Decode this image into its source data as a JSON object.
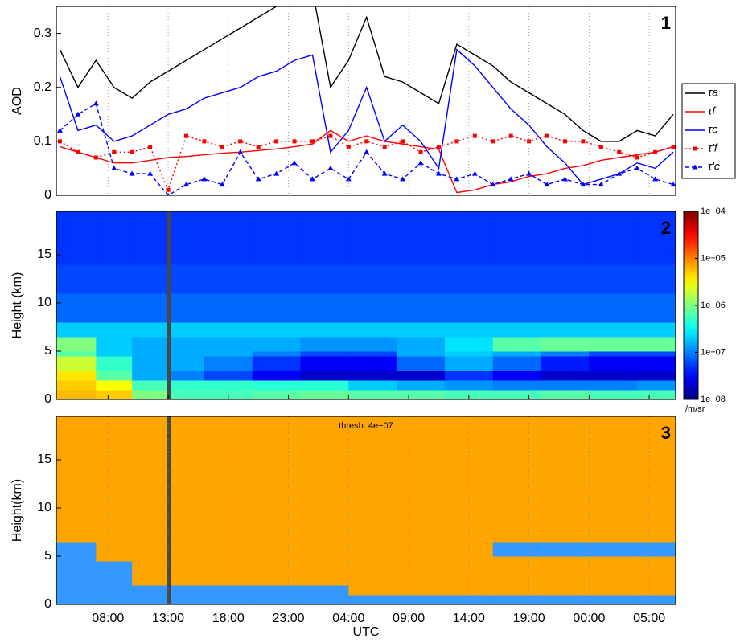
{
  "chart_data": [
    {
      "type": "line",
      "ylabel": "AOD",
      "annotation": "1",
      "xlim": [
        3.7,
        55.2
      ],
      "xticks": [
        8,
        13,
        18,
        23,
        28,
        33,
        38,
        43,
        48,
        53
      ],
      "ylim": [
        0,
        0.35
      ],
      "yticks": [
        0,
        0.1,
        0.2,
        0.3
      ],
      "grid": true,
      "legend": "right",
      "x": [
        4,
        5.5,
        7,
        8.5,
        10,
        11.5,
        13,
        14.5,
        16,
        17.5,
        19,
        20.5,
        22,
        23.5,
        25,
        26.5,
        28,
        29.5,
        31,
        32.5,
        34,
        35.5,
        37,
        38.5,
        40,
        41.5,
        43,
        44.5,
        46,
        47.5,
        49,
        50.5,
        52,
        53.5,
        55
      ],
      "series": [
        {
          "name": "τa",
          "color": "#000000",
          "style": "solid",
          "marker": "none",
          "values": [
            0.27,
            0.2,
            0.25,
            0.2,
            0.18,
            0.21,
            0.23,
            0.25,
            0.27,
            0.29,
            0.31,
            0.33,
            0.35,
            0.37,
            0.38,
            0.2,
            0.25,
            0.33,
            0.22,
            0.21,
            0.19,
            0.17,
            0.28,
            0.26,
            0.24,
            0.21,
            0.19,
            0.17,
            0.15,
            0.12,
            0.1,
            0.1,
            0.12,
            0.11,
            0.15
          ]
        },
        {
          "name": "τf",
          "color": "#ff0000",
          "style": "solid",
          "marker": "none",
          "values": [
            0.09,
            0.08,
            0.07,
            0.06,
            0.06,
            0.065,
            0.07,
            0.072,
            0.075,
            0.078,
            0.08,
            0.083,
            0.086,
            0.09,
            0.095,
            0.12,
            0.1,
            0.11,
            0.1,
            0.095,
            0.09,
            0.085,
            0.005,
            0.01,
            0.02,
            0.025,
            0.035,
            0.04,
            0.05,
            0.055,
            0.065,
            0.07,
            0.075,
            0.08,
            0.09
          ]
        },
        {
          "name": "τc",
          "color": "#0000ff",
          "style": "solid",
          "marker": "none",
          "values": [
            0.22,
            0.12,
            0.13,
            0.1,
            0.11,
            0.13,
            0.15,
            0.16,
            0.18,
            0.19,
            0.2,
            0.22,
            0.23,
            0.25,
            0.26,
            0.08,
            0.12,
            0.2,
            0.1,
            0.13,
            0.1,
            0.05,
            0.27,
            0.24,
            0.2,
            0.16,
            0.13,
            0.09,
            0.06,
            0.02,
            0.03,
            0.04,
            0.06,
            0.05,
            0.08
          ]
        },
        {
          "name": "τ'f",
          "color": "#ff0000",
          "style": "dotted",
          "marker": "square",
          "values": [
            0.1,
            0.08,
            0.07,
            0.08,
            0.08,
            0.09,
            0.01,
            0.11,
            0.1,
            0.09,
            0.1,
            0.09,
            0.1,
            0.1,
            0.1,
            0.11,
            0.09,
            0.1,
            0.09,
            0.1,
            0.08,
            0.09,
            0.1,
            0.11,
            0.1,
            0.11,
            0.1,
            0.11,
            0.1,
            0.1,
            0.09,
            0.08,
            0.07,
            0.08,
            0.09
          ]
        },
        {
          "name": "τ'c",
          "color": "#0000ff",
          "style": "dashed",
          "marker": "triangle",
          "values": [
            0.12,
            0.15,
            0.17,
            0.05,
            0.04,
            0.04,
            0,
            0.02,
            0.03,
            0.02,
            0.08,
            0.03,
            0.04,
            0.06,
            0.03,
            0.05,
            0.03,
            0.08,
            0.04,
            0.03,
            0.06,
            0.04,
            0.03,
            0.04,
            0.02,
            0.03,
            0.04,
            0.02,
            0.03,
            0.02,
            0.02,
            0.04,
            0.05,
            0.03,
            0.02
          ]
        }
      ]
    },
    {
      "type": "heatmap",
      "ylabel": "Height (km)",
      "annotation": "2",
      "xlim": [
        3.7,
        55.2
      ],
      "xticks": [
        8,
        13,
        18,
        23,
        28,
        33,
        38,
        43,
        48,
        53
      ],
      "ylim": [
        0,
        19.5
      ],
      "yticks": [
        0,
        5,
        10,
        15
      ],
      "grid": false,
      "colormap": "jet",
      "log_color": true,
      "clim": [
        1e-08,
        0.0001
      ],
      "cticks": [
        {
          "value": 1e-08,
          "label": "1e−08"
        },
        {
          "value": 1e-07,
          "label": "1e−07"
        },
        {
          "value": 1e-06,
          "label": "1e−06"
        },
        {
          "value": 1e-05,
          "label": "1e−05"
        },
        {
          "value": 0.0001,
          "label": "1e−04"
        }
      ],
      "colorbar_label": "/m/sr",
      "missing_color": "#474747",
      "x_edges": [
        3.7,
        7,
        10,
        12.9,
        13.2,
        16,
        20,
        24,
        28,
        32,
        36,
        40,
        44,
        48,
        52,
        55.2
      ],
      "y_edges": [
        0,
        1,
        2,
        3,
        4.5,
        5,
        6.5,
        8,
        11,
        14,
        19.5
      ],
      "z": [
        [
          6e-06,
          5e-06,
          1e-06,
          null,
          6e-07,
          6e-07,
          7e-07,
          8e-07,
          7e-07,
          7e-07,
          6e-07,
          6e-07,
          7e-07,
          6e-07,
          6e-07
        ],
        [
          5e-06,
          3e-06,
          6e-07,
          null,
          5e-07,
          5e-07,
          4.5e-07,
          4.5e-07,
          2e-07,
          1.5e-07,
          1.2e-07,
          1e-07,
          1e-07,
          1e-07,
          1.2e-07
        ],
        [
          4e-06,
          7e-07,
          1.5e-07,
          null,
          1e-07,
          6e-08,
          3e-08,
          2e-08,
          2e-08,
          2e-08,
          5e-08,
          3e-08,
          2e-08,
          2e-08,
          2e-08
        ],
        [
          2e-06,
          5e-07,
          1.5e-07,
          null,
          1.5e-07,
          1e-07,
          5e-08,
          3e-08,
          3e-08,
          8e-08,
          1.5e-07,
          8e-08,
          4e-08,
          3e-08,
          3e-08
        ],
        [
          7e-07,
          2e-07,
          1.5e-07,
          null,
          1.5e-07,
          1.5e-07,
          1e-07,
          6e-08,
          6e-08,
          1.5e-07,
          2e-07,
          1.5e-07,
          1e-07,
          6e-08,
          6e-08
        ],
        [
          1e-06,
          2e-07,
          1.5e-07,
          null,
          1.5e-07,
          1.5e-07,
          1.5e-07,
          1.2e-07,
          1.2e-07,
          1.5e-07,
          2.5e-07,
          7e-07,
          8e-07,
          8e-07,
          8e-07
        ],
        [
          2e-07,
          2e-07,
          2e-07,
          null,
          2e-07,
          2e-07,
          2e-07,
          2e-07,
          2e-07,
          2e-07,
          2e-07,
          2e-07,
          2e-07,
          2e-07,
          2e-07
        ],
        [
          8e-08,
          8e-08,
          8e-08,
          null,
          8e-08,
          8e-08,
          8e-08,
          8e-08,
          8e-08,
          8e-08,
          8e-08,
          8e-08,
          8e-08,
          8e-08,
          8e-08
        ],
        [
          6e-08,
          6e-08,
          6e-08,
          null,
          6e-08,
          6e-08,
          6e-08,
          6e-08,
          6e-08,
          6e-08,
          6e-08,
          6e-08,
          6e-08,
          6e-08,
          6e-08
        ],
        [
          5e-08,
          5e-08,
          5e-08,
          null,
          5e-08,
          5e-08,
          5e-08,
          5e-08,
          5e-08,
          5e-08,
          5e-08,
          5e-08,
          5e-08,
          5e-08,
          5e-08
        ]
      ]
    },
    {
      "type": "mask",
      "ylabel": "Height(km)",
      "xlabel": "UTC",
      "annotation": "3",
      "threshold_label": "thresh: 4e−07",
      "threshold": 4e-07,
      "color_above": "#3399ff",
      "color_below": "#ffa500",
      "xlim": [
        3.7,
        55.2
      ],
      "xticks": [
        {
          "value": 8,
          "label": "08:00"
        },
        {
          "value": 13,
          "label": "13:00"
        },
        {
          "value": 18,
          "label": "18:00"
        },
        {
          "value": 23,
          "label": "23:00"
        },
        {
          "value": 28,
          "label": "04:00"
        },
        {
          "value": 33,
          "label": "09:00"
        },
        {
          "value": 38,
          "label": "14:00"
        },
        {
          "value": 43,
          "label": "19:00"
        },
        {
          "value": 48,
          "label": "00:00"
        },
        {
          "value": 53,
          "label": "05:00"
        }
      ],
      "ylim": [
        0,
        19.5
      ],
      "yticks": [
        0,
        5,
        10,
        15
      ],
      "grid": true
    }
  ]
}
